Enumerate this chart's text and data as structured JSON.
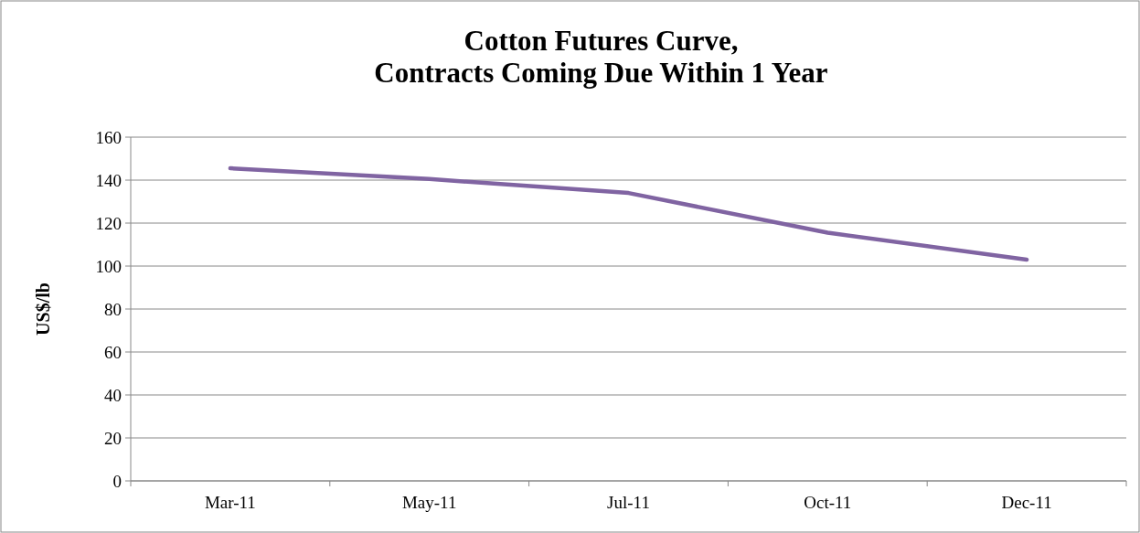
{
  "chart_data": {
    "type": "line",
    "title": "Cotton Futures Curve,\nContracts Coming Due Within 1 Year",
    "ylabel": "US$/lb",
    "categories": [
      "Mar-11",
      "May-11",
      "Jul-11",
      "Oct-11",
      "Dec-11"
    ],
    "series": [
      {
        "color": "#8064a2",
        "values": [
          145.5,
          140.5,
          134,
          115.5,
          103
        ]
      }
    ],
    "ylim": [
      0,
      160
    ],
    "yticks": [
      0,
      20,
      40,
      60,
      80,
      100,
      120,
      140,
      160
    ],
    "grid": "y",
    "marker": "none",
    "line_style": "solid"
  }
}
